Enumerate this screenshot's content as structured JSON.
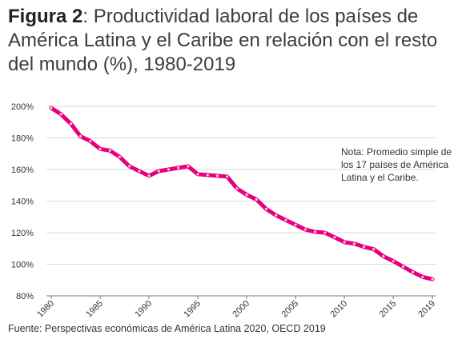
{
  "header": {
    "figure_label": "Figura 2",
    "title_text": ": Productividad laboral de los países de América Latina y el Caribe en relación con el resto del mundo (%), 1980-2019"
  },
  "note": "Nota: Promedio simple de los 17 países de América Latina y el Caribe.",
  "source": "Fuente: Perspectivas económicas de América Latina 2020, OECD 2019",
  "chart_data": {
    "type": "line",
    "title": "Productividad laboral de los países de América Latina y el Caribe en relación con el resto del mundo (%), 1980-2019",
    "xlabel": "",
    "ylabel": "",
    "ylim": [
      80,
      200
    ],
    "yticks": [
      80,
      100,
      120,
      140,
      160,
      180,
      200
    ],
    "ytick_labels": [
      "80%",
      "100%",
      "120%",
      "140%",
      "160%",
      "180%",
      "200%"
    ],
    "xticks": [
      1980,
      1985,
      1990,
      1995,
      2000,
      2005,
      2010,
      2015,
      2019
    ],
    "grid": "horizontal",
    "line_color": "#E6007E",
    "series": [
      {
        "x": [
          1980,
          1981,
          1982,
          1983,
          1984,
          1985,
          1986,
          1987,
          1988,
          1989,
          1990,
          1991,
          1992,
          1993,
          1994,
          1995,
          1996,
          1997,
          1998,
          1999,
          2000,
          2001,
          2002,
          2003,
          2004,
          2005,
          2006,
          2007,
          2008,
          2009,
          2010,
          2011,
          2012,
          2013,
          2014,
          2015,
          2016,
          2017,
          2018,
          2019
        ],
        "values": [
          199,
          195,
          189,
          181,
          178,
          173,
          172,
          168,
          162,
          159,
          156,
          159,
          160,
          161,
          162,
          157,
          156.5,
          156,
          155.5,
          148,
          144,
          141,
          135,
          131,
          128,
          125,
          122,
          120.5,
          120,
          117,
          114,
          113,
          111,
          109.5,
          105,
          102,
          98.5,
          95,
          92,
          90.5
        ]
      }
    ]
  }
}
